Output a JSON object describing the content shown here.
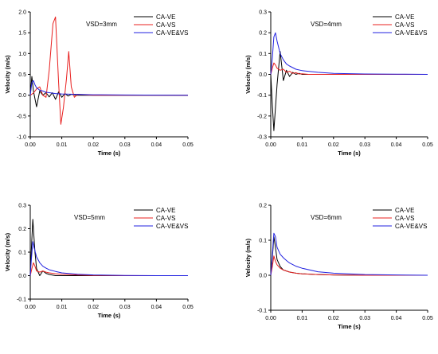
{
  "colors": {
    "CA-VE": "#000000",
    "CA-VS": "#e8201f",
    "CA-VE&VS": "#2222e0"
  },
  "chart_data": [
    {
      "type": "line",
      "title": "VSD=3mm",
      "xlabel": "Time (s)",
      "ylabel": "Velocity (m/s)",
      "xlim": [
        0,
        0.05
      ],
      "ylim": [
        -1.0,
        2.0
      ],
      "xticks": [
        "0.00",
        "0.01",
        "0.02",
        "0.03",
        "0.04",
        "0.05"
      ],
      "yticks": [
        "-1.0",
        "-0.5",
        "0.0",
        "0.5",
        "1.0",
        "1.5",
        "2.0"
      ],
      "legend": "top-right",
      "series": [
        {
          "name": "CA-VE",
          "x": [
            0,
            0.0005,
            0.001,
            0.002,
            0.003,
            0.004,
            0.005,
            0.006,
            0.007,
            0.008,
            0.009,
            0.01,
            0.011,
            0.012,
            0.013,
            0.015,
            0.02,
            0.05
          ],
          "y": [
            0,
            0.45,
            0.1,
            -0.28,
            0.1,
            0.0,
            0.06,
            -0.04,
            0.06,
            -0.1,
            0.08,
            -0.05,
            0.04,
            -0.02,
            0.02,
            0.0,
            0.0,
            0.0
          ]
        },
        {
          "name": "CA-VS",
          "x": [
            0,
            0.001,
            0.002,
            0.003,
            0.004,
            0.005,
            0.006,
            0.0072,
            0.008,
            0.009,
            0.0097,
            0.0105,
            0.0115,
            0.0122,
            0.013,
            0.014,
            0.015,
            0.02,
            0.05
          ],
          "y": [
            0,
            0.05,
            0.15,
            0.2,
            0.0,
            -0.05,
            0.6,
            1.72,
            1.88,
            0.3,
            -0.7,
            -0.3,
            0.4,
            1.05,
            0.2,
            -0.05,
            0.02,
            0.0,
            0.0
          ]
        },
        {
          "name": "CA-VE&VS",
          "x": [
            0,
            0.0005,
            0.001,
            0.0015,
            0.002,
            0.003,
            0.004,
            0.005,
            0.006,
            0.008,
            0.01,
            0.015,
            0.02,
            0.03,
            0.05
          ],
          "y": [
            0,
            0.3,
            0.35,
            0.25,
            0.18,
            0.12,
            0.1,
            0.07,
            0.06,
            0.04,
            0.03,
            0.02,
            0.01,
            0.005,
            0.0
          ]
        }
      ]
    },
    {
      "type": "line",
      "title": "VSD=4mm",
      "xlabel": "Time (s)",
      "ylabel": "Velocity (m/s)",
      "xlim": [
        0,
        0.05
      ],
      "ylim": [
        -0.3,
        0.3
      ],
      "xticks": [
        "0.00",
        "0.01",
        "0.02",
        "0.03",
        "0.04",
        "0.05"
      ],
      "yticks": [
        "-0.3",
        "-0.2",
        "-0.1",
        "0.0",
        "0.1",
        "0.2",
        "0.3"
      ],
      "legend": "top-right",
      "series": [
        {
          "name": "CA-VE",
          "x": [
            0,
            0.0005,
            0.001,
            0.002,
            0.003,
            0.004,
            0.005,
            0.006,
            0.007,
            0.008,
            0.009,
            0.01,
            0.012,
            0.05
          ],
          "y": [
            0,
            -0.15,
            -0.27,
            -0.05,
            0.11,
            -0.03,
            0.02,
            -0.01,
            0.01,
            0.0,
            0.005,
            0.0,
            0.0,
            0.0
          ]
        },
        {
          "name": "CA-VS",
          "x": [
            0,
            0.0005,
            0.001,
            0.0015,
            0.002,
            0.003,
            0.004,
            0.005,
            0.006,
            0.007,
            0.008,
            0.009,
            0.01,
            0.012,
            0.05
          ],
          "y": [
            0,
            0.03,
            0.055,
            0.045,
            0.03,
            0.02,
            0.025,
            0.01,
            0.015,
            0.005,
            0.008,
            0.002,
            0.003,
            0.0,
            0.0
          ]
        },
        {
          "name": "CA-VE&VS",
          "x": [
            0,
            0.0005,
            0.001,
            0.0015,
            0.002,
            0.003,
            0.004,
            0.005,
            0.006,
            0.008,
            0.01,
            0.015,
            0.02,
            0.03,
            0.04,
            0.05
          ],
          "y": [
            0,
            0.08,
            0.18,
            0.2,
            0.16,
            0.1,
            0.07,
            0.05,
            0.04,
            0.025,
            0.018,
            0.01,
            0.005,
            0.002,
            0.001,
            0.0
          ]
        }
      ]
    },
    {
      "type": "line",
      "title": "VSD=5mm",
      "xlabel": "Time (s)",
      "ylabel": "Velocity (m/s)",
      "xlim": [
        0,
        0.05
      ],
      "ylim": [
        -0.1,
        0.3
      ],
      "xticks": [
        "0.00",
        "0.01",
        "0.02",
        "0.03",
        "0.04",
        "0.05"
      ],
      "yticks": [
        "-0.1",
        "0.0",
        "0.1",
        "0.2",
        "0.3"
      ],
      "legend": "top-right",
      "series": [
        {
          "name": "CA-VE",
          "x": [
            0,
            0.0003,
            0.0008,
            0.0015,
            0.002,
            0.003,
            0.004,
            0.005,
            0.006,
            0.008,
            0.05
          ],
          "y": [
            0,
            0.1,
            0.24,
            0.1,
            0.03,
            0.0,
            0.02,
            0.01,
            0.005,
            0.0,
            0.0
          ]
        },
        {
          "name": "CA-VS",
          "x": [
            0,
            0.0005,
            0.001,
            0.0015,
            0.002,
            0.003,
            0.004,
            0.005,
            0.006,
            0.008,
            0.01,
            0.015,
            0.02,
            0.03,
            0.05
          ],
          "y": [
            0,
            0.03,
            0.055,
            0.04,
            0.02,
            0.015,
            0.02,
            0.015,
            0.012,
            0.008,
            0.006,
            0.003,
            0.001,
            0.0,
            0.0
          ]
        },
        {
          "name": "CA-VE&VS",
          "x": [
            0,
            0.0003,
            0.0008,
            0.0012,
            0.002,
            0.003,
            0.004,
            0.005,
            0.006,
            0.008,
            0.01,
            0.015,
            0.02,
            0.03,
            0.04,
            0.05
          ],
          "y": [
            0,
            0.06,
            0.145,
            0.12,
            0.08,
            0.055,
            0.04,
            0.032,
            0.025,
            0.018,
            0.012,
            0.006,
            0.003,
            0.001,
            0.0,
            0.0
          ]
        }
      ]
    },
    {
      "type": "line",
      "title": "VSD=6mm",
      "xlabel": "Time (s)",
      "ylabel": "Velocity (m/s)",
      "xlim": [
        0,
        0.05
      ],
      "ylim": [
        -0.1,
        0.2
      ],
      "xticks": [
        "0.00",
        "0.01",
        "0.02",
        "0.03",
        "0.04",
        "0.05"
      ],
      "yticks": [
        "-0.1",
        "0.0",
        "0.1",
        "0.2"
      ],
      "legend": "top-right",
      "series": [
        {
          "name": "CA-VE",
          "x": [
            0,
            0.0005,
            0.001,
            0.0015,
            0.002,
            0.003,
            0.004,
            0.006,
            0.008,
            0.01,
            0.015,
            0.02,
            0.03,
            0.05
          ],
          "y": [
            0,
            0.05,
            0.11,
            0.08,
            0.045,
            0.025,
            0.015,
            0.009,
            0.006,
            0.004,
            0.002,
            0.001,
            0.0,
            0.0
          ]
        },
        {
          "name": "CA-VS",
          "x": [
            0,
            0.0005,
            0.001,
            0.0015,
            0.002,
            0.003,
            0.004,
            0.006,
            0.008,
            0.01,
            0.015,
            0.02,
            0.03,
            0.05
          ],
          "y": [
            0,
            0.025,
            0.055,
            0.04,
            0.03,
            0.02,
            0.015,
            0.009,
            0.006,
            0.004,
            0.002,
            0.001,
            0.0,
            0.0
          ]
        },
        {
          "name": "CA-VE&VS",
          "x": [
            0,
            0.0005,
            0.001,
            0.0015,
            0.002,
            0.003,
            0.004,
            0.005,
            0.006,
            0.008,
            0.01,
            0.015,
            0.02,
            0.025,
            0.03,
            0.04,
            0.05
          ],
          "y": [
            0,
            0.06,
            0.12,
            0.11,
            0.08,
            0.06,
            0.05,
            0.042,
            0.035,
            0.026,
            0.02,
            0.01,
            0.006,
            0.004,
            0.002,
            0.001,
            0.0
          ]
        }
      ]
    }
  ]
}
